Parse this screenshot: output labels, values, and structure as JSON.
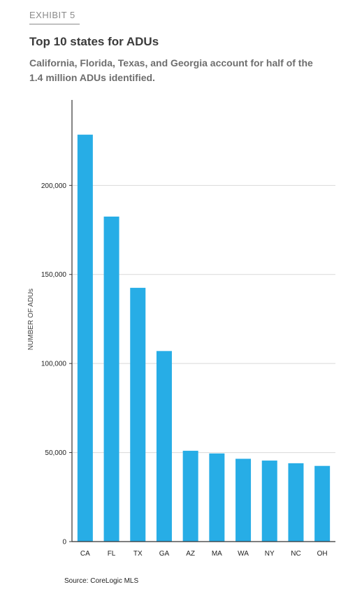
{
  "header": {
    "exhibit": "EXHIBIT 5",
    "title": "Top 10 states for ADUs",
    "subtitle": "California, Florida, Texas, and Georgia account for half of the 1.4 million ADUs identified."
  },
  "footer": {
    "source": "Source: CoreLogic MLS"
  },
  "colors": {
    "bar": "#27ade6",
    "grid": "#d9d9d9",
    "axis": "#333333"
  },
  "chart_data": {
    "type": "bar",
    "title": "",
    "xlabel": "",
    "ylabel": "NUMBER OF ADUs",
    "categories": [
      "CA",
      "FL",
      "TX",
      "GA",
      "AZ",
      "MA",
      "WA",
      "NY",
      "NC",
      "OH"
    ],
    "values": [
      228500,
      182500,
      142500,
      107000,
      51000,
      49500,
      46500,
      45500,
      44000,
      42500
    ],
    "ylim": [
      0,
      248000
    ],
    "yticks": [
      0,
      50000,
      100000,
      150000,
      200000
    ],
    "ytick_labels": [
      "0",
      "50,000",
      "100,000",
      "150,000",
      "200,000"
    ],
    "grid": true,
    "legend": "none"
  }
}
